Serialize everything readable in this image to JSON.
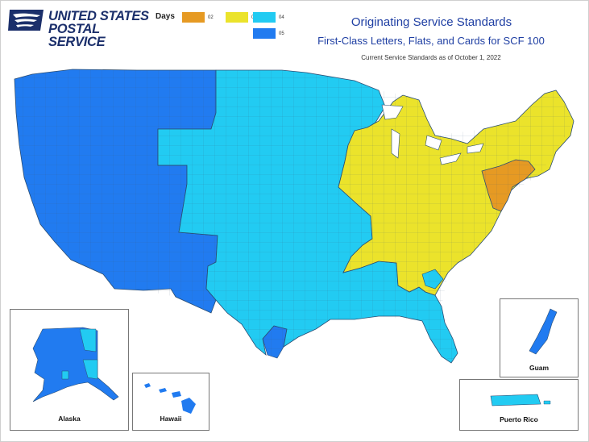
{
  "logo": {
    "line1": "UNITED STATES",
    "line2": "POSTAL SERVICE",
    "icon": "eagle-logo-icon"
  },
  "legend": {
    "title": "Days",
    "items": [
      {
        "label": "02",
        "color": "#e69a23"
      },
      {
        "label": "03",
        "color": "#ebe32b"
      },
      {
        "label": "04",
        "color": "#22cbf2"
      },
      {
        "label": "05",
        "color": "#217bf0"
      }
    ]
  },
  "title": {
    "main": "Originating Service Standards",
    "sub": "First-Class Letters, Flats, and Cards for SCF 100",
    "note": "Current Service Standards as of October 1, 2022"
  },
  "insets": {
    "alaska": "Alaska",
    "hawaii": "Hawaii",
    "guam": "Guam",
    "puerto_rico": "Puerto Rico"
  },
  "colors": {
    "d02": "#e69a23",
    "d03": "#ebe32b",
    "d04": "#22cbf2",
    "d05": "#217bf0",
    "border": "#5a6b7a"
  }
}
